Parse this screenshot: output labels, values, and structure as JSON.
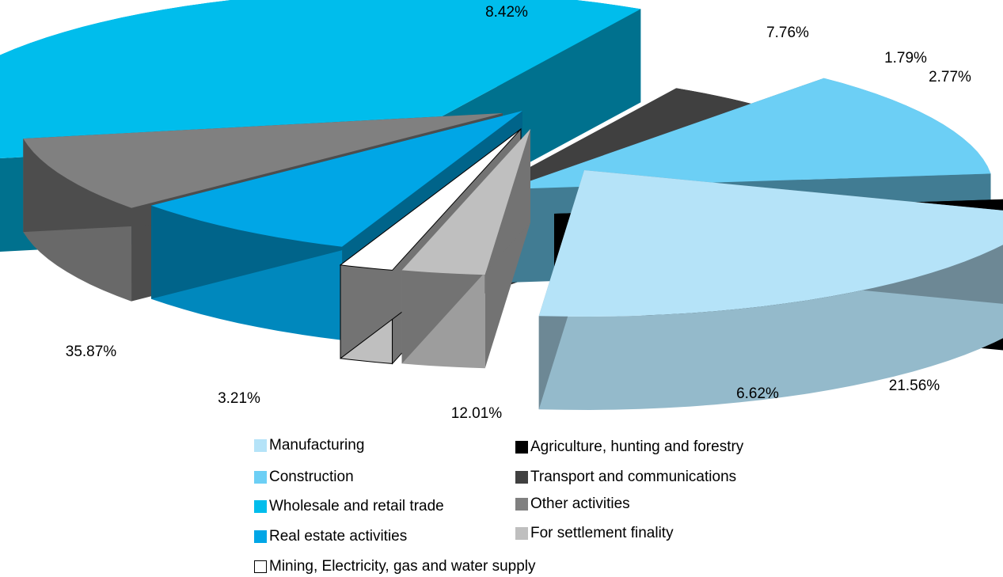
{
  "chart_data": {
    "type": "pie",
    "title": "",
    "style": "3d-exploded",
    "legend_position": "bottom",
    "slices": [
      {
        "name": "Wholesale and retail trade",
        "value": 35.87,
        "label": "35.87%",
        "color": "#00bdec"
      },
      {
        "name": "Transport and communications",
        "value": 3.21,
        "label": "3.21%",
        "color": "#404040"
      },
      {
        "name": "Construction",
        "value": 12.01,
        "label": "12.01%",
        "color": "#6ccff5"
      },
      {
        "name": "Agriculture, hunting and forestry",
        "value": 6.62,
        "label": "6.62%",
        "color": "#000000"
      },
      {
        "name": "Manufacturing",
        "value": 21.56,
        "label": "21.56%",
        "color": "#b5e3f8"
      },
      {
        "name": "For settlement finality",
        "value": 2.77,
        "label": "2.77%",
        "color": "#bfbfbf"
      },
      {
        "name": "Mining, Electricity, gas and water supply",
        "value": 1.79,
        "label": "1.79%",
        "color": "#ffffff"
      },
      {
        "name": "Real estate activities",
        "value": 7.76,
        "label": "7.76%",
        "color": "#00a6e6"
      },
      {
        "name": "Other activities",
        "value": 8.42,
        "label": "8.42%",
        "color": "#808080"
      }
    ]
  },
  "legend": {
    "items": [
      {
        "label": "Manufacturing",
        "color": "#b5e3f8"
      },
      {
        "label": "Agriculture, hunting and forestry",
        "color": "#000000"
      },
      {
        "label": "Construction",
        "color": "#6ccff5"
      },
      {
        "label": "Transport and communications",
        "color": "#404040"
      },
      {
        "label": "Wholesale and retail trade",
        "color": "#00bdec"
      },
      {
        "label": "Other activities",
        "color": "#808080"
      },
      {
        "label": "Real estate activities",
        "color": "#00a6e6"
      },
      {
        "label": "For settlement finality",
        "color": "#bfbfbf"
      },
      {
        "label": "Mining, Electricity, gas and water supply",
        "color": "#ffffff"
      }
    ]
  }
}
